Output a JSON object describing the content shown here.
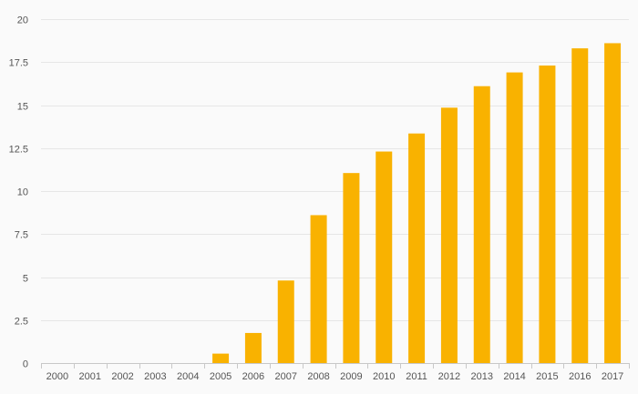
{
  "chart_data": {
    "type": "bar",
    "title": "",
    "xlabel": "",
    "ylabel": "",
    "categories": [
      "2000",
      "2001",
      "2002",
      "2003",
      "2004",
      "2005",
      "2006",
      "2007",
      "2008",
      "2009",
      "2010",
      "2011",
      "2012",
      "2013",
      "2014",
      "2015",
      "2016",
      "2017"
    ],
    "values": [
      0,
      0,
      0,
      0,
      0,
      0.55,
      1.75,
      4.8,
      8.6,
      11.05,
      12.3,
      13.35,
      14.85,
      16.1,
      16.9,
      17.3,
      18.3,
      18.6
    ],
    "ylim": [
      0,
      20
    ],
    "yticks": [
      "0",
      "2.5",
      "5",
      "7.5",
      "10",
      "12.5",
      "15",
      "17.5",
      "20"
    ],
    "grid": true,
    "colors": {
      "bar": "#f9b200",
      "grid": "#e6e6e6",
      "axis": "#c8c8c8",
      "background": "#fafafa"
    }
  }
}
